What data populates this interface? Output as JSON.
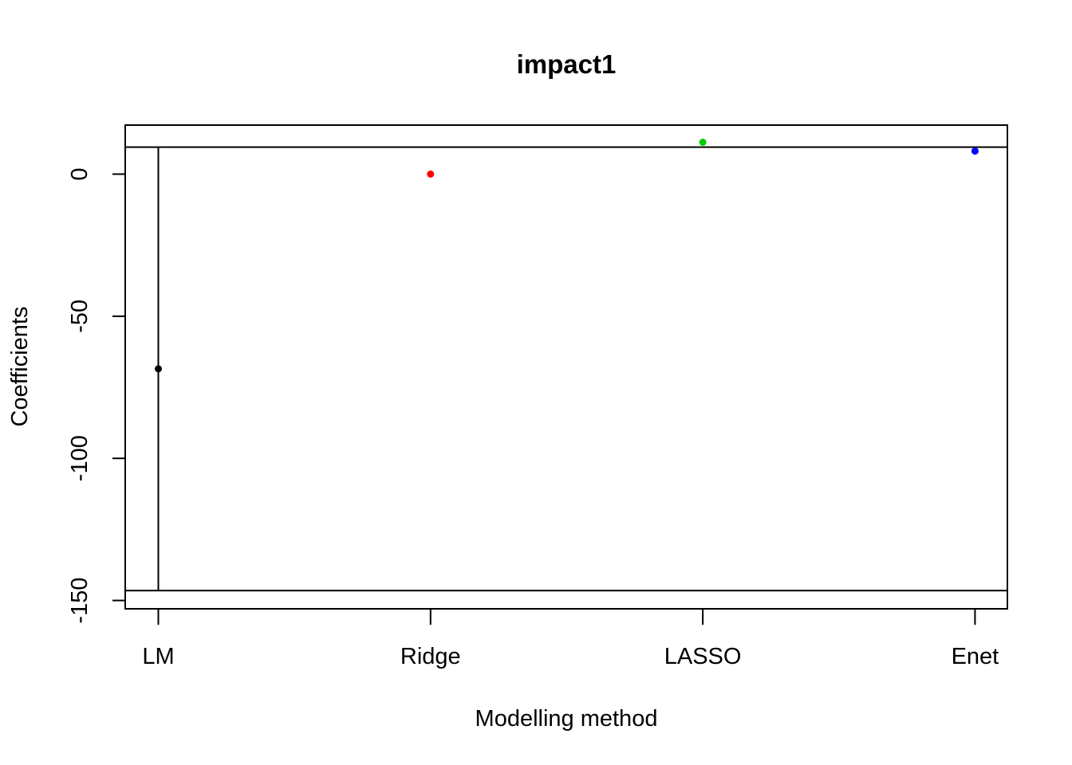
{
  "chart_data": {
    "type": "scatter",
    "title": "impact1",
    "xlabel": "Modelling method",
    "ylabel": "Coefficients",
    "categories": [
      "LM",
      "Ridge",
      "LASSO",
      "Enet"
    ],
    "values": [
      -68.5,
      0,
      11.2,
      8.1
    ],
    "point_colors": [
      "#000000",
      "#ff0000",
      "#00cd00",
      "#0000ff"
    ],
    "ylim": [
      -153,
      17.5
    ],
    "yticks": [
      0,
      -50,
      -100,
      -150
    ],
    "ytick_labels": [
      "0",
      "-50",
      "-100",
      "-150"
    ],
    "reference_lines": {
      "upper": 9.5,
      "lower": -146.5
    },
    "lm_error_bar": {
      "category": "LM",
      "low": -146.5,
      "high": 9.5
    },
    "grid": false,
    "legend": "none"
  }
}
